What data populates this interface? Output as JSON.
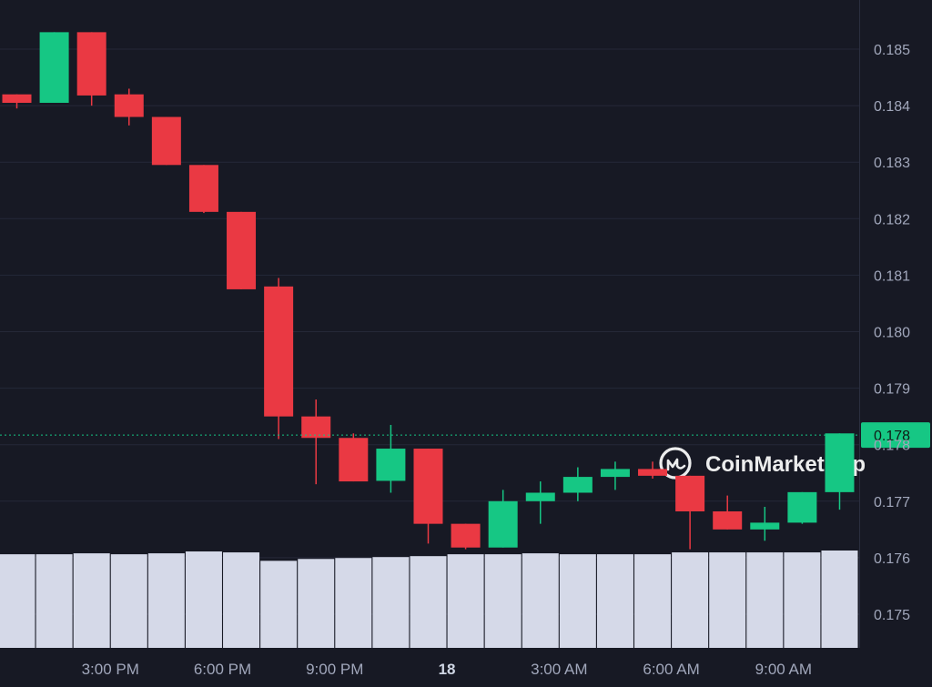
{
  "chart_data": {
    "type": "candlestick",
    "y_ticks": [
      "0.185",
      "0.184",
      "0.183",
      "0.182",
      "0.181",
      "0.180",
      "0.179",
      "0.178",
      "0.177",
      "0.176",
      "0.175"
    ],
    "y_tick_values": [
      0.185,
      0.184,
      0.183,
      0.182,
      0.181,
      0.18,
      0.179,
      0.178,
      0.177,
      0.176,
      0.175
    ],
    "ylim": [
      0.1745,
      0.1858
    ],
    "x_ticks": [
      {
        "label": "3:00 PM",
        "index": 2.5,
        "bold": false
      },
      {
        "label": "6:00 PM",
        "index": 5.5,
        "bold": false
      },
      {
        "label": "9:00 PM",
        "index": 8.5,
        "bold": false
      },
      {
        "label": "18",
        "index": 11.5,
        "bold": true
      },
      {
        "label": "3:00 AM",
        "index": 14.5,
        "bold": false
      },
      {
        "label": "6:00 AM",
        "index": 17.5,
        "bold": false
      },
      {
        "label": "9:00 AM",
        "index": 20.5,
        "bold": false
      }
    ],
    "candles": [
      {
        "o": 0.1842,
        "h": 0.1842,
        "l": 0.18395,
        "c": 0.18405
      },
      {
        "o": 0.18405,
        "h": 0.1853,
        "l": 0.18405,
        "c": 0.1853
      },
      {
        "o": 0.1853,
        "h": 0.1853,
        "l": 0.184,
        "c": 0.18418
      },
      {
        "o": 0.1842,
        "h": 0.1843,
        "l": 0.18365,
        "c": 0.1838
      },
      {
        "o": 0.1838,
        "h": 0.1838,
        "l": 0.18295,
        "c": 0.18295
      },
      {
        "o": 0.18295,
        "h": 0.18295,
        "l": 0.1821,
        "c": 0.18212
      },
      {
        "o": 0.18212,
        "h": 0.18212,
        "l": 0.18075,
        "c": 0.18075
      },
      {
        "o": 0.1808,
        "h": 0.18095,
        "l": 0.1781,
        "c": 0.1785
      },
      {
        "o": 0.1785,
        "h": 0.1788,
        "l": 0.1773,
        "c": 0.17812
      },
      {
        "o": 0.17812,
        "h": 0.1782,
        "l": 0.17735,
        "c": 0.17735
      },
      {
        "o": 0.17736,
        "h": 0.17835,
        "l": 0.17715,
        "c": 0.17793
      },
      {
        "o": 0.17793,
        "h": 0.17793,
        "l": 0.17625,
        "c": 0.1766
      },
      {
        "o": 0.1766,
        "h": 0.1766,
        "l": 0.17615,
        "c": 0.17618
      },
      {
        "o": 0.17618,
        "h": 0.1772,
        "l": 0.17618,
        "c": 0.177
      },
      {
        "o": 0.177,
        "h": 0.17735,
        "l": 0.1766,
        "c": 0.17715
      },
      {
        "o": 0.17715,
        "h": 0.1776,
        "l": 0.177,
        "c": 0.17743
      },
      {
        "o": 0.17743,
        "h": 0.1777,
        "l": 0.1772,
        "c": 0.17757
      },
      {
        "o": 0.17757,
        "h": 0.1777,
        "l": 0.1774,
        "c": 0.17745
      },
      {
        "o": 0.17745,
        "h": 0.17745,
        "l": 0.17615,
        "c": 0.17682
      },
      {
        "o": 0.17682,
        "h": 0.1771,
        "l": 0.1765,
        "c": 0.1765
      },
      {
        "o": 0.1765,
        "h": 0.1769,
        "l": 0.1763,
        "c": 0.17662
      },
      {
        "o": 0.17662,
        "h": 0.17716,
        "l": 0.1766,
        "c": 0.17716
      },
      {
        "o": 0.17716,
        "h": 0.1782,
        "l": 0.17685,
        "c": 0.1782
      }
    ],
    "volume": [
      100,
      100,
      101,
      100,
      101,
      103,
      102,
      93,
      95,
      96,
      97,
      98,
      100,
      100,
      101,
      100,
      100,
      100,
      102,
      102,
      102,
      102,
      104
    ],
    "current_price": {
      "value": 0.17817,
      "label": "0.178"
    },
    "watermark": "CoinMarketCap",
    "colors": {
      "background": "#171924",
      "grid": "#252838",
      "up": "#16c784",
      "down": "#ea3943",
      "volume": "#d5d9e8",
      "tick_text": "#a1a7bb",
      "price_line": "#16c784"
    }
  }
}
